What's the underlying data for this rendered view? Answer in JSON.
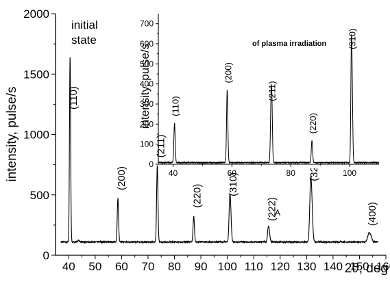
{
  "chart_data": [
    {
      "id": "main",
      "type": "line",
      "xlabel": "2ϑ, deg",
      "ylabel": "intensity, pulse/s",
      "xlim": [
        35,
        160
      ],
      "ylim": [
        0,
        2000
      ],
      "xticks": [
        40,
        50,
        60,
        70,
        80,
        90,
        100,
        110,
        120,
        130,
        140,
        150,
        160
      ],
      "yticks": [
        0,
        500,
        1000,
        1500,
        2000
      ],
      "annotation": "initial\nstate",
      "grid": false,
      "baseline": 110,
      "x_start": 37,
      "x_end": 157,
      "peaks": [
        {
          "x": 40.5,
          "y": 1640,
          "w": 0.22,
          "label": "(110)"
        },
        {
          "x": 43.7,
          "y": 125,
          "w": 0.25
        },
        {
          "x": 58.6,
          "y": 470,
          "w": 0.25,
          "label": "(200)"
        },
        {
          "x": 73.5,
          "y": 740,
          "w": 0.25,
          "label": "(211)"
        },
        {
          "x": 87.3,
          "y": 325,
          "w": 0.25,
          "label": "(220)"
        },
        {
          "x": 100.9,
          "y": 420,
          "w": 0.28,
          "label": "(310)"
        },
        {
          "x": 101.3,
          "y": 300,
          "w": 0.28
        },
        {
          "x": 115.5,
          "y": 215,
          "w": 0.3,
          "label": "(222)"
        },
        {
          "x": 115.9,
          "y": 165,
          "w": 0.3
        },
        {
          "x": 131.5,
          "y": 545,
          "w": 0.35,
          "label": "(321)"
        },
        {
          "x": 132.0,
          "y": 345,
          "w": 0.35
        },
        {
          "x": 153.5,
          "y": 175,
          "w": 0.45,
          "label": "(400)"
        },
        {
          "x": 154.3,
          "y": 155,
          "w": 0.4
        }
      ],
      "extra_labels": [
        {
          "text": "A",
          "x": 118,
          "y": 330
        }
      ]
    },
    {
      "id": "inset",
      "type": "line",
      "xlabel": "",
      "ylabel": "intensity, pulse/s",
      "xlim": [
        35,
        110
      ],
      "ylim": [
        0,
        750
      ],
      "xticks": [
        40,
        60,
        80,
        100
      ],
      "yticks": [
        0,
        100,
        200,
        300,
        400,
        500,
        600,
        700
      ],
      "annotation": "of plasma irradiation",
      "grid": false,
      "baseline": 8,
      "x_start": 35,
      "x_end": 110,
      "peaks": [
        {
          "x": 40.5,
          "y": 205,
          "w": 0.22,
          "label": "(110)"
        },
        {
          "x": 58.4,
          "y": 370,
          "w": 0.22,
          "label": "(200)"
        },
        {
          "x": 73.3,
          "y": 280,
          "w": 0.22,
          "label": "(211)"
        },
        {
          "x": 73.6,
          "y": 240,
          "w": 0.2
        },
        {
          "x": 87.2,
          "y": 118,
          "w": 0.22,
          "label": "(220)"
        },
        {
          "x": 100.6,
          "y": 545,
          "w": 0.2,
          "label": "(310)"
        },
        {
          "x": 100.9,
          "y": 270,
          "w": 0.2
        }
      ]
    }
  ]
}
